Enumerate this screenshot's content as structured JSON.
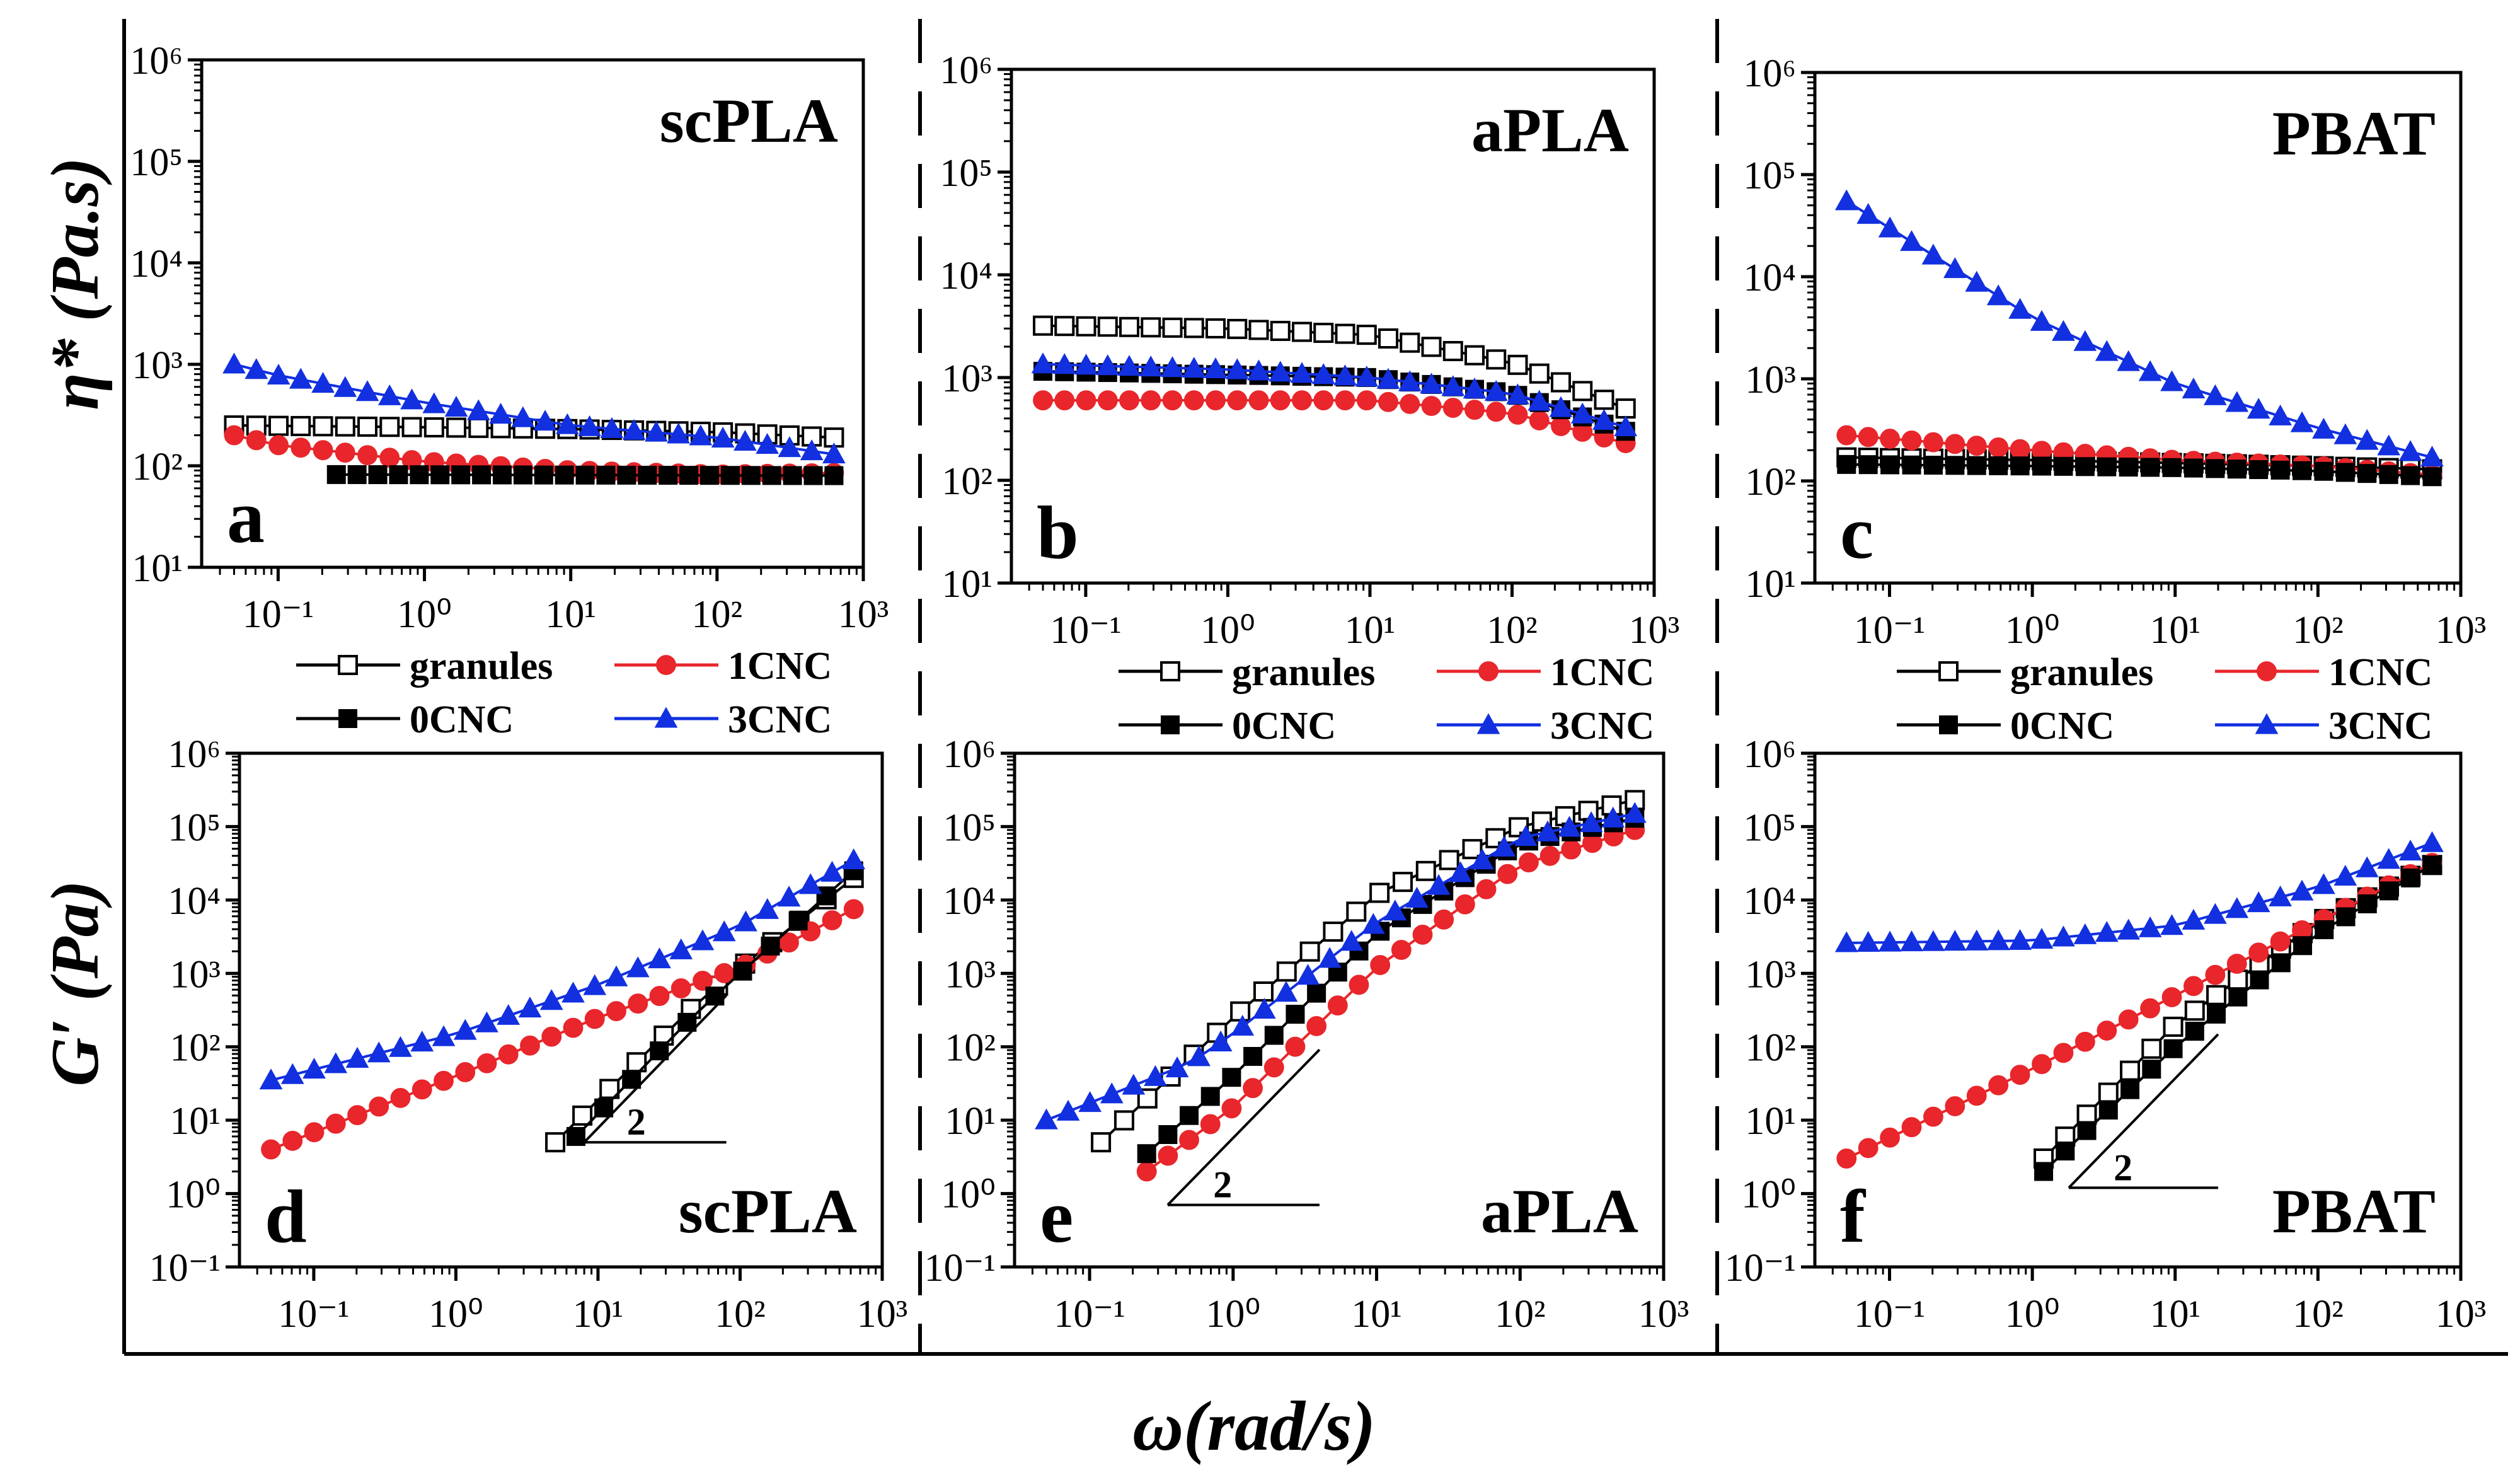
{
  "figure": {
    "x_axis_label": "ω(rad/s)",
    "y_axis_labels": {
      "top": "η* (Pa.s)",
      "bottom": "G′ (Pa)"
    },
    "slope_label": "2"
  },
  "legend": {
    "entries": [
      {
        "key": "granules",
        "label": "granules",
        "marker": "open-square",
        "color": "#000000"
      },
      {
        "key": "1CNC",
        "label": "1CNC",
        "marker": "circle",
        "color": "#e8262b"
      },
      {
        "key": "0CNC",
        "label": "0CNC",
        "marker": "square",
        "color": "#000000"
      },
      {
        "key": "3CNC",
        "label": "3CNC",
        "marker": "triangle",
        "color": "#1230e0"
      }
    ]
  },
  "chart_data": [
    {
      "id": "a",
      "type": "scatter",
      "title": "scPLA",
      "panel_letter": "a",
      "xscale": "log",
      "yscale": "log",
      "xlim": [
        0.03,
        1000
      ],
      "ylim": [
        10,
        1000000
      ],
      "xlabel": "ω(rad/s)",
      "ylabel": "η* (Pa.s)",
      "x_ticks": [
        "0.1",
        "1",
        "10",
        "100",
        "1000"
      ],
      "y_ticks": [
        "10",
        "100",
        "1000",
        "10000",
        "100000",
        "1000000"
      ],
      "series": [
        {
          "name": "granules",
          "x_range": [
            0.05,
            630
          ],
          "n": 28,
          "anchors": [
            [
              0.05,
              250
            ],
            [
              1,
              240
            ],
            [
              10,
              230
            ],
            [
              100,
              215
            ],
            [
              630,
              190
            ]
          ]
        },
        {
          "name": "1CNC",
          "x_range": [
            0.05,
            630
          ],
          "n": 28,
          "anchors": [
            [
              0.05,
              200
            ],
            [
              0.1,
              160
            ],
            [
              1,
              110
            ],
            [
              10,
              90
            ],
            [
              100,
              82
            ],
            [
              630,
              85
            ]
          ]
        },
        {
          "name": "0CNC",
          "x_range": [
            0.25,
            630
          ],
          "n": 25,
          "anchors": [
            [
              0.25,
              82
            ],
            [
              630,
              80
            ]
          ]
        },
        {
          "name": "3CNC",
          "x_range": [
            0.05,
            630
          ],
          "n": 28,
          "anchors": [
            [
              0.05,
              1000
            ],
            [
              0.1,
              780
            ],
            [
              1,
              420
            ],
            [
              10,
              250
            ],
            [
              100,
              190
            ],
            [
              630,
              130
            ]
          ]
        }
      ]
    },
    {
      "id": "b",
      "type": "scatter",
      "title": "aPLA",
      "panel_letter": "b",
      "xscale": "log",
      "yscale": "log",
      "xlim": [
        0.03,
        1000
      ],
      "ylim": [
        10,
        1000000
      ],
      "xlabel": "ω(rad/s)",
      "ylabel": "η* (Pa.s)",
      "x_ticks": [
        "0.1",
        "1",
        "10",
        "100",
        "1000"
      ],
      "y_ticks": [
        "10",
        "100",
        "1000",
        "10000",
        "100000",
        "1000000"
      ],
      "series": [
        {
          "name": "granules",
          "x_range": [
            0.05,
            630
          ],
          "n": 28,
          "anchors": [
            [
              0.05,
              3200
            ],
            [
              1,
              3000
            ],
            [
              10,
              2600
            ],
            [
              100,
              1400
            ],
            [
              630,
              500
            ]
          ]
        },
        {
          "name": "1CNC",
          "x_range": [
            0.05,
            630
          ],
          "n": 28,
          "anchors": [
            [
              0.05,
              600
            ],
            [
              10,
              600
            ],
            [
              100,
              450
            ],
            [
              630,
              230
            ]
          ]
        },
        {
          "name": "0CNC",
          "x_range": [
            0.05,
            630
          ],
          "n": 28,
          "anchors": [
            [
              0.05,
              1150
            ],
            [
              10,
              1000
            ],
            [
              100,
              700
            ],
            [
              630,
              300
            ]
          ]
        },
        {
          "name": "3CNC",
          "x_range": [
            0.05,
            630
          ],
          "n": 28,
          "anchors": [
            [
              0.05,
              1350
            ],
            [
              1,
              1200
            ],
            [
              10,
              1000
            ],
            [
              100,
              700
            ],
            [
              630,
              330
            ]
          ]
        }
      ]
    },
    {
      "id": "c",
      "type": "scatter",
      "title": "PBAT",
      "panel_letter": "c",
      "xscale": "log",
      "yscale": "log",
      "xlim": [
        0.03,
        1000
      ],
      "ylim": [
        10,
        1000000
      ],
      "xlabel": "ω(rad/s)",
      "ylabel": "η* (Pa.s)",
      "x_ticks": [
        "0.1",
        "1",
        "10",
        "100",
        "1000"
      ],
      "y_ticks": [
        "10",
        "100",
        "1000",
        "10000",
        "100000",
        "1000000"
      ],
      "series": [
        {
          "name": "granules",
          "x_range": [
            0.05,
            630
          ],
          "n": 28,
          "anchors": [
            [
              0.05,
              170
            ],
            [
              1,
              160
            ],
            [
              10,
              150
            ],
            [
              100,
              140
            ],
            [
              630,
              130
            ]
          ]
        },
        {
          "name": "1CNC",
          "x_range": [
            0.05,
            630
          ],
          "n": 28,
          "anchors": [
            [
              0.05,
              280
            ],
            [
              1,
              200
            ],
            [
              10,
              160
            ],
            [
              100,
              140
            ],
            [
              630,
              115
            ]
          ]
        },
        {
          "name": "0CNC",
          "x_range": [
            0.05,
            630
          ],
          "n": 28,
          "anchors": [
            [
              0.05,
              145
            ],
            [
              1,
              140
            ],
            [
              10,
              135
            ],
            [
              100,
              125
            ],
            [
              630,
              110
            ]
          ]
        },
        {
          "name": "3CNC",
          "x_range": [
            0.05,
            630
          ],
          "n": 28,
          "anchors": [
            [
              0.05,
              55000
            ],
            [
              0.1,
              30000
            ],
            [
              1,
              4000
            ],
            [
              10,
              900
            ],
            [
              100,
              330
            ],
            [
              630,
              170
            ]
          ]
        }
      ]
    },
    {
      "id": "d",
      "type": "scatter",
      "title": "scPLA",
      "panel_letter": "d",
      "xscale": "log",
      "yscale": "log",
      "xlim": [
        0.03,
        1000
      ],
      "ylim": [
        0.1,
        1000000
      ],
      "xlabel": "ω(rad/s)",
      "ylabel": "G′ (Pa)",
      "x_ticks": [
        "0.1",
        "1",
        "10",
        "100",
        "1000"
      ],
      "y_ticks": [
        "0.1",
        "1",
        "10",
        "100",
        "1000",
        "10000",
        "100000",
        "1000000"
      ],
      "slope_triangle": {
        "slope": 2,
        "x0": 8,
        "x1": 80,
        "y0": 5
      },
      "series": [
        {
          "name": "granules",
          "x_range": [
            5,
            630
          ],
          "n": 12,
          "anchors": [
            [
              5,
              5
            ],
            [
              50,
              400
            ],
            [
              100,
              1200
            ],
            [
              630,
              20000
            ]
          ]
        },
        {
          "name": "1CNC",
          "x_range": [
            0.05,
            630
          ],
          "n": 28,
          "anchors": [
            [
              0.05,
              4
            ],
            [
              1,
              40
            ],
            [
              10,
              250
            ],
            [
              100,
              1200
            ],
            [
              630,
              7500
            ]
          ]
        },
        {
          "name": "0CNC",
          "x_range": [
            7,
            630
          ],
          "n": 11,
          "anchors": [
            [
              7,
              6
            ],
            [
              50,
              300
            ],
            [
              100,
              1000
            ],
            [
              630,
              25000
            ]
          ]
        },
        {
          "name": "3CNC",
          "x_range": [
            0.05,
            630
          ],
          "n": 28,
          "anchors": [
            [
              0.05,
              35
            ],
            [
              1,
              150
            ],
            [
              10,
              700
            ],
            [
              100,
              4500
            ],
            [
              630,
              35000
            ]
          ]
        }
      ]
    },
    {
      "id": "e",
      "type": "scatter",
      "title": "aPLA",
      "panel_letter": "e",
      "xscale": "log",
      "yscale": "log",
      "xlim": [
        0.03,
        1000
      ],
      "ylim": [
        0.1,
        1000000
      ],
      "xlabel": "ω(rad/s)",
      "ylabel": "G′ (Pa)",
      "x_ticks": [
        "0.1",
        "1",
        "10",
        "100",
        "1000"
      ],
      "y_ticks": [
        "0.1",
        "1",
        "10",
        "100",
        "1000",
        "10000",
        "100000",
        "1000000"
      ],
      "slope_triangle": {
        "slope": 2,
        "x0": 0.35,
        "x1": 4,
        "y0": 0.7
      },
      "series": [
        {
          "name": "granules",
          "x_range": [
            0.12,
            630
          ],
          "n": 24,
          "anchors": [
            [
              0.12,
              5
            ],
            [
              1,
              250
            ],
            [
              10,
              12000
            ],
            [
              100,
              100000
            ],
            [
              630,
              230000
            ]
          ]
        },
        {
          "name": "1CNC",
          "x_range": [
            0.25,
            630
          ],
          "n": 24,
          "anchors": [
            [
              0.25,
              2
            ],
            [
              1,
              15
            ],
            [
              10,
              1200
            ],
            [
              100,
              30000
            ],
            [
              630,
              90000
            ]
          ]
        },
        {
          "name": "0CNC",
          "x_range": [
            0.25,
            630
          ],
          "n": 24,
          "anchors": [
            [
              0.25,
              3.5
            ],
            [
              1,
              40
            ],
            [
              10,
              3500
            ],
            [
              100,
              60000
            ],
            [
              630,
              130000
            ]
          ]
        },
        {
          "name": "3CNC",
          "x_range": [
            0.05,
            630
          ],
          "n": 28,
          "anchors": [
            [
              0.05,
              10
            ],
            [
              0.5,
              60
            ],
            [
              1,
              150
            ],
            [
              10,
              5000
            ],
            [
              100,
              70000
            ],
            [
              630,
              150000
            ]
          ]
        }
      ]
    },
    {
      "id": "f",
      "type": "scatter",
      "title": "PBAT",
      "panel_letter": "f",
      "xscale": "log",
      "yscale": "log",
      "xlim": [
        0.03,
        1000
      ],
      "ylim": [
        0.1,
        1000000
      ],
      "xlabel": "ω(rad/s)",
      "ylabel": "G′ (Pa)",
      "x_ticks": [
        "0.1",
        "1",
        "10",
        "100",
        "1000"
      ],
      "y_ticks": [
        "0.1",
        "1",
        "10",
        "100",
        "1000",
        "10000",
        "100000",
        "1000000"
      ],
      "slope_triangle": {
        "slope": 2,
        "x0": 1.8,
        "x1": 20,
        "y0": 1.2
      },
      "series": [
        {
          "name": "granules",
          "x_range": [
            1.2,
            630
          ],
          "n": 19,
          "anchors": [
            [
              1.2,
              3
            ],
            [
              10,
              200
            ],
            [
              100,
              5000
            ],
            [
              630,
              30000
            ]
          ]
        },
        {
          "name": "1CNC",
          "x_range": [
            0.05,
            630
          ],
          "n": 28,
          "anchors": [
            [
              0.05,
              3
            ],
            [
              1,
              50
            ],
            [
              10,
              500
            ],
            [
              100,
              5000
            ],
            [
              630,
              32000
            ]
          ]
        },
        {
          "name": "0CNC",
          "x_range": [
            1.2,
            630
          ],
          "n": 19,
          "anchors": [
            [
              1.2,
              2
            ],
            [
              10,
              100
            ],
            [
              100,
              3500
            ],
            [
              630,
              30000
            ]
          ]
        },
        {
          "name": "3CNC",
          "x_range": [
            0.05,
            630
          ],
          "n": 28,
          "anchors": [
            [
              0.05,
              2600
            ],
            [
              1,
              2800
            ],
            [
              10,
              4500
            ],
            [
              100,
              15000
            ],
            [
              630,
              60000
            ]
          ]
        }
      ]
    }
  ]
}
